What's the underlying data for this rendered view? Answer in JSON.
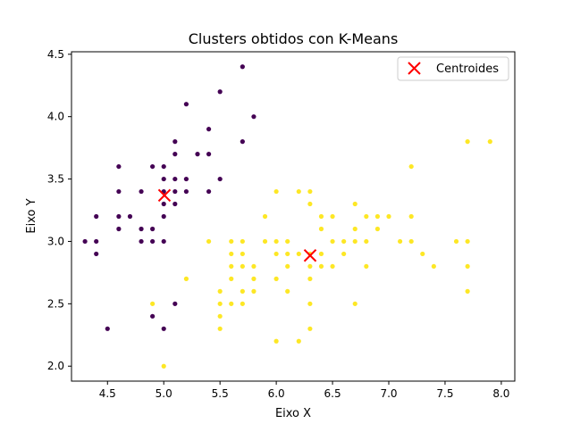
{
  "chart_data": {
    "type": "scatter",
    "title": "Clusters obtidos con K-Means",
    "xlabel": "Eixo X",
    "ylabel": "Eixo Y",
    "xlim": [
      4.18,
      8.12
    ],
    "ylim": [
      1.88,
      4.52
    ],
    "x_ticks": [
      "4.5",
      "5.0",
      "5.5",
      "6.0",
      "6.5",
      "7.0",
      "7.5",
      "8.0"
    ],
    "y_ticks": [
      "2.0",
      "2.5",
      "3.0",
      "3.5",
      "4.0",
      "4.5"
    ],
    "grid": false,
    "legend_position": "top-right",
    "colors": {
      "cluster_0": "#440154",
      "cluster_1": "#fde725",
      "centroid": "#ff0000"
    },
    "series": [
      {
        "cluster": 0,
        "points": [
          [
            4.3,
            3.0
          ],
          [
            4.4,
            3.2
          ],
          [
            4.4,
            3.0
          ],
          [
            4.4,
            2.9
          ],
          [
            4.5,
            2.3
          ],
          [
            4.6,
            3.6
          ],
          [
            4.6,
            3.4
          ],
          [
            4.6,
            3.2
          ],
          [
            4.6,
            3.1
          ],
          [
            4.7,
            3.2
          ],
          [
            4.8,
            3.4
          ],
          [
            4.8,
            3.1
          ],
          [
            4.8,
            3.0
          ],
          [
            4.9,
            3.6
          ],
          [
            4.9,
            3.1
          ],
          [
            4.9,
            3.0
          ],
          [
            4.9,
            2.4
          ],
          [
            5.0,
            3.6
          ],
          [
            5.0,
            3.5
          ],
          [
            5.0,
            3.4
          ],
          [
            5.0,
            3.3
          ],
          [
            5.0,
            3.2
          ],
          [
            5.0,
            3.0
          ],
          [
            5.0,
            2.3
          ],
          [
            5.1,
            3.8
          ],
          [
            5.1,
            3.7
          ],
          [
            5.1,
            3.5
          ],
          [
            5.1,
            3.4
          ],
          [
            5.1,
            3.3
          ],
          [
            5.1,
            2.5
          ],
          [
            5.2,
            4.1
          ],
          [
            5.2,
            3.5
          ],
          [
            5.2,
            3.4
          ],
          [
            5.3,
            3.7
          ],
          [
            5.4,
            3.9
          ],
          [
            5.4,
            3.7
          ],
          [
            5.4,
            3.4
          ],
          [
            5.5,
            4.2
          ],
          [
            5.5,
            3.5
          ],
          [
            5.7,
            4.4
          ],
          [
            5.7,
            3.8
          ],
          [
            5.8,
            4.0
          ]
        ]
      },
      {
        "cluster": 1,
        "points": [
          [
            4.9,
            2.5
          ],
          [
            5.0,
            2.0
          ],
          [
            5.2,
            2.7
          ],
          [
            5.4,
            3.0
          ],
          [
            5.5,
            2.6
          ],
          [
            5.5,
            2.5
          ],
          [
            5.5,
            2.4
          ],
          [
            5.5,
            2.3
          ],
          [
            5.6,
            3.0
          ],
          [
            5.6,
            2.9
          ],
          [
            5.6,
            2.8
          ],
          [
            5.6,
            2.7
          ],
          [
            5.6,
            2.5
          ],
          [
            5.7,
            3.0
          ],
          [
            5.7,
            2.9
          ],
          [
            5.7,
            2.8
          ],
          [
            5.7,
            2.6
          ],
          [
            5.7,
            2.5
          ],
          [
            5.8,
            2.8
          ],
          [
            5.8,
            2.7
          ],
          [
            5.8,
            2.6
          ],
          [
            5.9,
            3.2
          ],
          [
            5.9,
            3.0
          ],
          [
            6.0,
            3.4
          ],
          [
            6.0,
            3.0
          ],
          [
            6.0,
            2.9
          ],
          [
            6.0,
            2.7
          ],
          [
            6.0,
            2.2
          ],
          [
            6.1,
            3.0
          ],
          [
            6.1,
            2.9
          ],
          [
            6.1,
            2.8
          ],
          [
            6.1,
            2.6
          ],
          [
            6.2,
            3.4
          ],
          [
            6.2,
            2.9
          ],
          [
            6.2,
            2.2
          ],
          [
            6.3,
            3.4
          ],
          [
            6.3,
            3.3
          ],
          [
            6.3,
            2.9
          ],
          [
            6.3,
            2.8
          ],
          [
            6.3,
            2.7
          ],
          [
            6.3,
            2.5
          ],
          [
            6.3,
            2.3
          ],
          [
            6.4,
            3.2
          ],
          [
            6.4,
            3.1
          ],
          [
            6.4,
            2.9
          ],
          [
            6.4,
            2.8
          ],
          [
            6.5,
            3.2
          ],
          [
            6.5,
            3.0
          ],
          [
            6.5,
            2.8
          ],
          [
            6.6,
            3.0
          ],
          [
            6.6,
            2.9
          ],
          [
            6.7,
            3.3
          ],
          [
            6.7,
            3.1
          ],
          [
            6.7,
            3.0
          ],
          [
            6.7,
            2.5
          ],
          [
            6.8,
            3.2
          ],
          [
            6.8,
            3.0
          ],
          [
            6.8,
            2.8
          ],
          [
            6.9,
            3.2
          ],
          [
            6.9,
            3.1
          ],
          [
            7.0,
            3.2
          ],
          [
            7.1,
            3.0
          ],
          [
            7.2,
            3.6
          ],
          [
            7.2,
            3.2
          ],
          [
            7.2,
            3.0
          ],
          [
            7.3,
            2.9
          ],
          [
            7.4,
            2.8
          ],
          [
            7.6,
            3.0
          ],
          [
            7.7,
            3.8
          ],
          [
            7.7,
            3.0
          ],
          [
            7.7,
            2.8
          ],
          [
            7.7,
            2.6
          ],
          [
            7.9,
            3.8
          ]
        ]
      },
      {
        "name": "Centroides",
        "points": [
          [
            5.006,
            3.369
          ],
          [
            6.301,
            2.887
          ]
        ]
      }
    ]
  }
}
